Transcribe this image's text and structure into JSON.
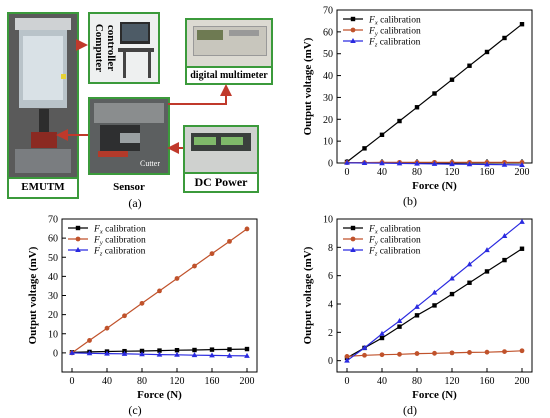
{
  "panel_a": {
    "caption": "(a)",
    "labels": {
      "emutm": "EMUTM",
      "computer": "Computer\ncontroller",
      "multimeter": "digital multimeter",
      "sensor": "Sensor",
      "cutter": "Cutter",
      "dcpower": "DC Power"
    }
  },
  "colors": {
    "fx": "#000000",
    "fy": "#c0522b",
    "fz": "#2a2ae0",
    "frame": "#3b9a3b",
    "arrow": "#c0392b"
  },
  "chart_data": [
    {
      "panel": "(b)",
      "type": "line",
      "xlabel": "Force (N)",
      "ylabel": "Output voltage (mV)",
      "xlim": [
        0,
        200
      ],
      "ylim": [
        0,
        70
      ],
      "xticks": [
        0,
        40,
        80,
        120,
        160,
        200
      ],
      "yticks": [
        0,
        10,
        20,
        30,
        40,
        50,
        60,
        70
      ],
      "legend": "top-left",
      "x": [
        0,
        20,
        40,
        60,
        80,
        100,
        120,
        140,
        160,
        180,
        200
      ],
      "series": [
        {
          "name": "Fx calibration",
          "sym": "x",
          "values": [
            0.5,
            6.7,
            12.9,
            19.2,
            25.5,
            31.8,
            38.1,
            44.5,
            50.8,
            57.2,
            63.5
          ]
        },
        {
          "name": "Fy calibration",
          "sym": "y",
          "values": [
            0.2,
            0.2,
            0.3,
            0.3,
            0.3,
            0.3,
            0.3,
            0.3,
            0.3,
            0.3,
            0.3
          ]
        },
        {
          "name": "Fz calibration",
          "sym": "z",
          "values": [
            0.1,
            0.0,
            -0.1,
            -0.2,
            -0.3,
            -0.4,
            -0.5,
            -0.6,
            -0.7,
            -0.8,
            -0.9
          ]
        }
      ]
    },
    {
      "panel": "(c)",
      "type": "line",
      "xlabel": "Force (N)",
      "ylabel": "Output voltage (mV)",
      "xlim": [
        0,
        200
      ],
      "ylim": [
        -10,
        70
      ],
      "xticks": [
        0,
        40,
        80,
        120,
        160,
        200
      ],
      "yticks": [
        0,
        10,
        20,
        30,
        40,
        50,
        60,
        70
      ],
      "legend": "top-left",
      "x": [
        0,
        20,
        40,
        60,
        80,
        100,
        120,
        140,
        160,
        180,
        200
      ],
      "series": [
        {
          "name": "Fx calibration",
          "sym": "x",
          "values": [
            0.3,
            0.5,
            0.7,
            0.9,
            1.0,
            1.2,
            1.4,
            1.5,
            1.7,
            1.8,
            2.0
          ]
        },
        {
          "name": "Fy calibration",
          "sym": "y",
          "values": [
            0.0,
            6.5,
            12.9,
            19.4,
            25.9,
            32.4,
            38.9,
            45.4,
            51.9,
            58.3,
            64.8
          ]
        },
        {
          "name": "Fz calibration",
          "sym": "z",
          "values": [
            0.0,
            -0.2,
            -0.4,
            -0.5,
            -0.7,
            -0.9,
            -1.0,
            -1.2,
            -1.3,
            -1.5,
            -1.6
          ]
        }
      ]
    },
    {
      "panel": "(d)",
      "type": "line",
      "xlabel": "Force (N)",
      "ylabel": "Output voltage (mV)",
      "xlim": [
        0,
        200
      ],
      "ylim": [
        -0.8,
        10
      ],
      "xticks": [
        0,
        40,
        80,
        120,
        160,
        200
      ],
      "yticks": [
        0,
        2,
        4,
        6,
        8,
        10
      ],
      "legend": "top-left",
      "x": [
        0,
        20,
        40,
        60,
        80,
        100,
        120,
        140,
        160,
        180,
        200
      ],
      "series": [
        {
          "name": "Fx calibration",
          "sym": "x",
          "values": [
            0.2,
            0.9,
            1.6,
            2.4,
            3.2,
            3.9,
            4.7,
            5.5,
            6.3,
            7.1,
            7.9
          ]
        },
        {
          "name": "Fy calibration",
          "sym": "y",
          "values": [
            0.3,
            0.38,
            0.42,
            0.45,
            0.5,
            0.52,
            0.55,
            0.58,
            0.6,
            0.64,
            0.7
          ]
        },
        {
          "name": "Fz calibration",
          "sym": "z",
          "values": [
            0.0,
            0.9,
            1.9,
            2.8,
            3.8,
            4.8,
            5.8,
            6.8,
            7.8,
            8.8,
            9.8
          ]
        }
      ]
    }
  ]
}
